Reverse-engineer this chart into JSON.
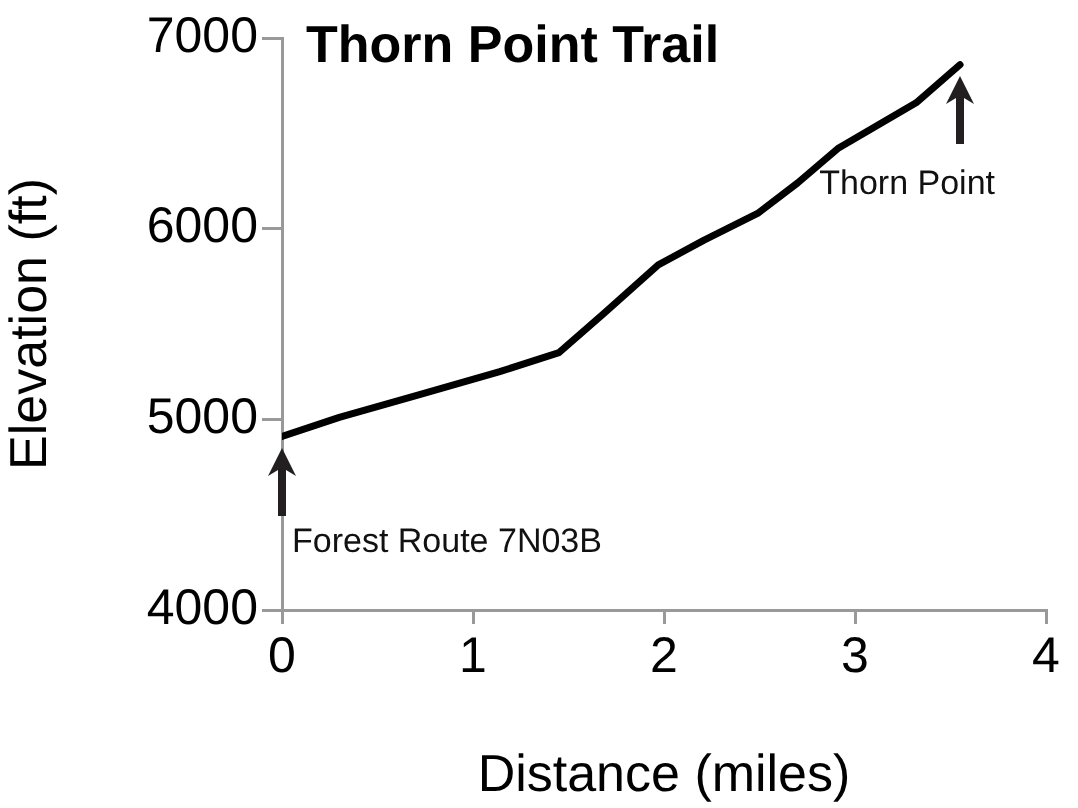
{
  "chart_data": {
    "type": "line",
    "title": "Thorn Point Trail",
    "xlabel": "Distance (miles)",
    "ylabel": "Elevation (ft)",
    "x": [
      0,
      0.3,
      0.72,
      1.14,
      1.45,
      1.69,
      1.97,
      2.21,
      2.49,
      2.7,
      2.91,
      3.32,
      3.55
    ],
    "series": [
      {
        "color": "#000000",
        "values": [
          4910,
          5010,
          5130,
          5250,
          5350,
          5560,
          5810,
          5940,
          6080,
          6240,
          6420,
          6660,
          6860
        ]
      }
    ],
    "xlim": [
      0,
      4
    ],
    "xticks": [
      0,
      1,
      2,
      3,
      4
    ],
    "ylim": [
      4000,
      7000
    ],
    "yticks": [
      4000,
      5000,
      6000,
      7000
    ],
    "grid": false,
    "legend": false,
    "marker": "none",
    "line_style": "solid",
    "annotations": [
      {
        "text": "Forest Route 7N03B",
        "x": 0,
        "y": 4910
      },
      {
        "text": "Thorn Point",
        "x": 3.55,
        "y": 6860
      }
    ]
  }
}
